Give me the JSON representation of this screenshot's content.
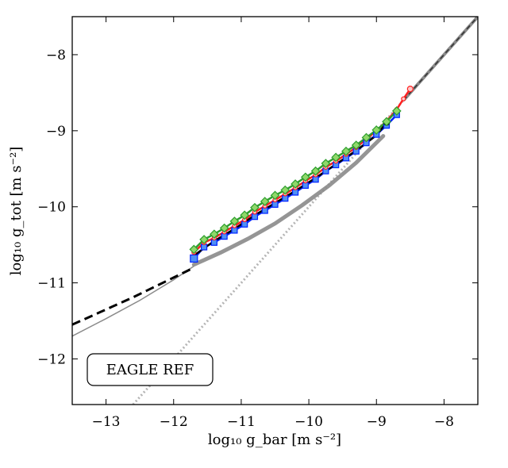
{
  "chart_data": {
    "type": "line",
    "xlabel": "log₁₀ g_bar [m s⁻²]",
    "ylabel": "log₁₀ g_tot [m s⁻²]",
    "xlim": [
      -13.5,
      -7.5
    ],
    "ylim": [
      -12.6,
      -7.5
    ],
    "xticks": [
      -13,
      -12,
      -11,
      -10,
      -9,
      -8
    ],
    "yticks": [
      -12,
      -11,
      -10,
      -9,
      -8
    ],
    "xtick_labels": [
      "−13",
      "−12",
      "−11",
      "−10",
      "−9",
      "−8"
    ],
    "ytick_labels": [
      "−12",
      "−11",
      "−10",
      "−9",
      "−8"
    ],
    "annotation": "EAGLE REF",
    "grid": false,
    "colors": {
      "blue": "#0022ff",
      "blue_fill": "#4f8ff5",
      "green": "#2e9e2e",
      "green_fill": "#8fd86a",
      "red": "#ff2020",
      "black": "#000000",
      "gray": "#8a8a8a",
      "light_gray": "#b5b5b5"
    },
    "series": [
      {
        "style": "black-dashed",
        "x": [
          -13.5,
          -13.2,
          -12.9,
          -12.6,
          -12.3,
          -12.0,
          -11.7
        ],
        "y": [
          -11.55,
          -11.43,
          -11.31,
          -11.19,
          -11.06,
          -10.93,
          -10.8
        ]
      },
      {
        "style": "gray-thin",
        "x": [
          -13.5,
          -13.0,
          -12.5,
          -12.0,
          -11.7
        ],
        "y": [
          -11.7,
          -11.47,
          -11.23,
          -10.96,
          -10.78
        ]
      },
      {
        "style": "gray-dotted",
        "x": [
          -12.6,
          -7.5
        ],
        "y": [
          -12.6,
          -7.5
        ]
      },
      {
        "style": "gray-thick",
        "x": [
          -11.7,
          -11.3,
          -10.9,
          -10.5,
          -10.1,
          -9.7,
          -9.3,
          -8.9
        ],
        "y": [
          -10.76,
          -10.6,
          -10.42,
          -10.22,
          -9.98,
          -9.72,
          -9.42,
          -9.07
        ]
      },
      {
        "style": "dark-dashed-diagonal",
        "x": [
          -8.6,
          -7.5
        ],
        "y": [
          -8.6,
          -7.5
        ]
      },
      {
        "name": "blue",
        "x": [
          -11.7,
          -11.55,
          -11.4,
          -11.25,
          -11.1,
          -10.95,
          -10.8,
          -10.65,
          -10.5,
          -10.35,
          -10.2,
          -10.05,
          -9.9,
          -9.75,
          -9.6,
          -9.45,
          -9.3,
          -9.15,
          -9.0,
          -8.85,
          -8.7
        ],
        "y": [
          -10.68,
          -10.53,
          -10.47,
          -10.39,
          -10.31,
          -10.23,
          -10.13,
          -10.05,
          -9.97,
          -9.89,
          -9.81,
          -9.72,
          -9.64,
          -9.53,
          -9.45,
          -9.36,
          -9.27,
          -9.16,
          -9.05,
          -8.93,
          -8.79
        ]
      },
      {
        "name": "red",
        "x": [
          -11.7,
          -11.55,
          -11.4,
          -11.25,
          -11.1,
          -10.95,
          -10.8,
          -10.65,
          -10.5,
          -10.35,
          -10.2,
          -10.05,
          -9.9,
          -9.75,
          -9.6,
          -9.45,
          -9.3,
          -9.15,
          -9.0,
          -8.85,
          -8.7,
          -8.6,
          -8.5
        ],
        "y": [
          -10.6,
          -10.47,
          -10.41,
          -10.33,
          -10.25,
          -10.17,
          -10.07,
          -9.99,
          -9.91,
          -9.83,
          -9.75,
          -9.66,
          -9.58,
          -9.48,
          -9.4,
          -9.31,
          -9.22,
          -9.11,
          -9.0,
          -8.87,
          -8.72,
          -8.58,
          -8.45
        ]
      },
      {
        "name": "black",
        "x": [
          -11.7,
          -11.4,
          -11.1,
          -10.8,
          -10.5,
          -10.2,
          -9.9,
          -9.6,
          -9.3,
          -9.0,
          -8.85
        ],
        "y": [
          -10.64,
          -10.45,
          -10.29,
          -10.11,
          -9.95,
          -9.79,
          -9.62,
          -9.44,
          -9.26,
          -9.06,
          -8.89
        ]
      },
      {
        "name": "green",
        "x": [
          -11.7,
          -11.55,
          -11.4,
          -11.25,
          -11.1,
          -10.95,
          -10.8,
          -10.65,
          -10.5,
          -10.35,
          -10.2,
          -10.05,
          -9.9,
          -9.75,
          -9.6,
          -9.45,
          -9.3,
          -9.15,
          -9.0,
          -8.85,
          -8.7
        ],
        "y": [
          -10.56,
          -10.43,
          -10.36,
          -10.28,
          -10.19,
          -10.11,
          -10.01,
          -9.93,
          -9.85,
          -9.78,
          -9.7,
          -9.61,
          -9.53,
          -9.43,
          -9.35,
          -9.27,
          -9.19,
          -9.09,
          -8.99,
          -8.88,
          -8.74
        ]
      }
    ]
  }
}
